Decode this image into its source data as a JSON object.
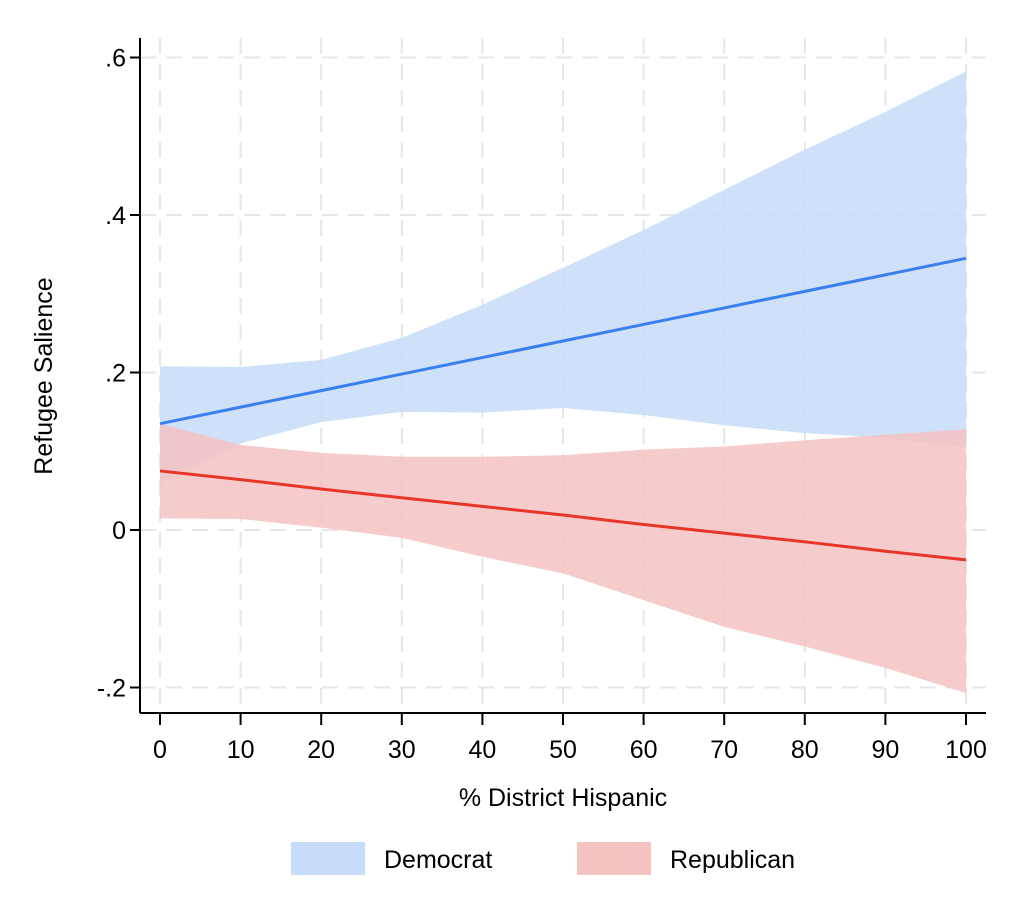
{
  "chart_data": {
    "type": "line",
    "title": "",
    "xlabel": "% District Hispanic",
    "ylabel": "Refugee Salience",
    "xlim": [
      0,
      100
    ],
    "ylim": [
      -0.2,
      0.6
    ],
    "x_ticks": [
      0,
      10,
      20,
      30,
      40,
      50,
      60,
      70,
      80,
      90,
      100
    ],
    "x_tick_labels": [
      "0",
      "10",
      "20",
      "30",
      "40",
      "50",
      "60",
      "70",
      "80",
      "90",
      "100"
    ],
    "y_ticks": [
      -0.2,
      0,
      0.2,
      0.4,
      0.6
    ],
    "y_tick_labels": [
      "-.2",
      "0",
      ".2",
      ".4",
      ".6"
    ],
    "grid": true,
    "legend_position": "bottom",
    "x": [
      0,
      10,
      20,
      30,
      40,
      50,
      60,
      70,
      80,
      90,
      100
    ],
    "series": [
      {
        "name": "Democrat",
        "line_color": "#3a7ff0",
        "band_color": "#c6dcf8",
        "estimate": [
          0.135,
          0.156,
          0.177,
          0.198,
          0.219,
          0.24,
          0.261,
          0.282,
          0.303,
          0.324,
          0.345
        ],
        "ci_upper": [
          0.208,
          0.207,
          0.216,
          0.244,
          0.286,
          0.333,
          0.381,
          0.432,
          0.483,
          0.531,
          0.582
        ],
        "ci_lower": [
          0.06,
          0.11,
          0.137,
          0.15,
          0.149,
          0.155,
          0.146,
          0.133,
          0.123,
          0.117,
          0.105
        ]
      },
      {
        "name": "Republican",
        "line_color": "#e8352a",
        "band_color": "#f5c2c2",
        "estimate": [
          0.075,
          0.064,
          0.052,
          0.041,
          0.03,
          0.019,
          0.007,
          -0.004,
          -0.015,
          -0.027,
          -0.038
        ],
        "ci_upper": [
          0.135,
          0.108,
          0.098,
          0.093,
          0.093,
          0.095,
          0.102,
          0.106,
          0.114,
          0.121,
          0.128
        ],
        "ci_lower": [
          0.015,
          0.014,
          0.003,
          -0.01,
          -0.034,
          -0.055,
          -0.089,
          -0.123,
          -0.148,
          -0.175,
          -0.207
        ]
      }
    ]
  }
}
